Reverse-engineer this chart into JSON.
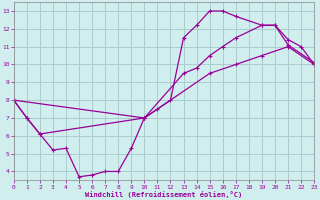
{
  "xlabel": "Windchill (Refroidissement éolien,°C)",
  "background_color": "#d0eeee",
  "line_color": "#990099",
  "grid_color": "#aacccc",
  "xlim": [
    0,
    23
  ],
  "ylim": [
    3.5,
    13.5
  ],
  "xticks": [
    0,
    1,
    2,
    3,
    4,
    5,
    6,
    7,
    8,
    9,
    10,
    11,
    12,
    13,
    14,
    15,
    16,
    17,
    18,
    19,
    20,
    21,
    22,
    23
  ],
  "yticks": [
    4,
    5,
    6,
    7,
    8,
    9,
    10,
    11,
    12,
    13
  ],
  "curve1_x": [
    0,
    1,
    2,
    3,
    4,
    5,
    6,
    7,
    8,
    9,
    10,
    11,
    12,
    13,
    14,
    15,
    16,
    17,
    19,
    20,
    21,
    23
  ],
  "curve1_y": [
    8.0,
    7.0,
    6.1,
    5.2,
    5.3,
    3.7,
    3.8,
    4.0,
    4.0,
    5.3,
    7.0,
    7.5,
    8.0,
    11.5,
    12.2,
    13.0,
    13.0,
    12.7,
    12.2,
    12.2,
    11.1,
    10.1
  ],
  "curve2_x": [
    0,
    10,
    15,
    17,
    19,
    21,
    23
  ],
  "curve2_y": [
    8.0,
    7.0,
    9.5,
    10.0,
    10.5,
    11.0,
    10.0
  ],
  "curve3_x": [
    0,
    1,
    2,
    10,
    13,
    14,
    15,
    16,
    17,
    19,
    20,
    21,
    22,
    23
  ],
  "curve3_y": [
    8.0,
    7.0,
    6.1,
    7.0,
    9.5,
    9.8,
    10.5,
    11.0,
    11.5,
    12.2,
    12.2,
    11.4,
    11.0,
    10.0
  ]
}
